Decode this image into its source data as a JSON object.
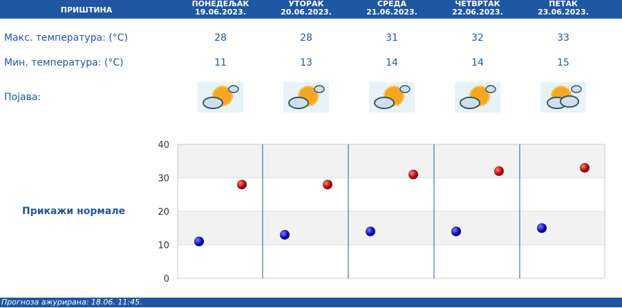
{
  "header": {
    "city": "ПРИШТИНА",
    "days": [
      {
        "name": "ПОНЕДЕЉАК",
        "date": "19.06.2023."
      },
      {
        "name": "УТОРАК",
        "date": "20.06.2023."
      },
      {
        "name": "СРЕДА",
        "date": "21.06.2023."
      },
      {
        "name": "ЧЕТВРТАК",
        "date": "22.06.2023."
      },
      {
        "name": "ПЕТАК",
        "date": "23.06.2023."
      }
    ]
  },
  "rows": {
    "max_label": "Макс. температура: (°C)",
    "min_label": "Мин. температура: (°C)",
    "phen_label": "Појава:",
    "max": [
      "28",
      "28",
      "31",
      "32",
      "33"
    ],
    "min": [
      "11",
      "13",
      "14",
      "14",
      "15"
    ],
    "icons": [
      "partly-cloudy-sun-icon",
      "partly-cloudy-sun-icon",
      "partly-cloudy-sun-icon",
      "partly-cloudy-sun-icon",
      "cloudy-sun-icon"
    ]
  },
  "show_normals": "Прикажи нормале",
  "footer": "Прогноза ажурирана:  18.06. 11:45.",
  "chart_data": {
    "type": "scatter",
    "ylim": [
      0,
      40
    ],
    "yticks": [
      "0",
      "10",
      "20",
      "30",
      "40"
    ],
    "grid": true,
    "series": [
      {
        "values": [
          28,
          28,
          31,
          32,
          33
        ],
        "color": "#cc0000"
      },
      {
        "values": [
          11,
          13,
          14,
          14,
          15
        ],
        "color": "#1010c0"
      }
    ]
  }
}
